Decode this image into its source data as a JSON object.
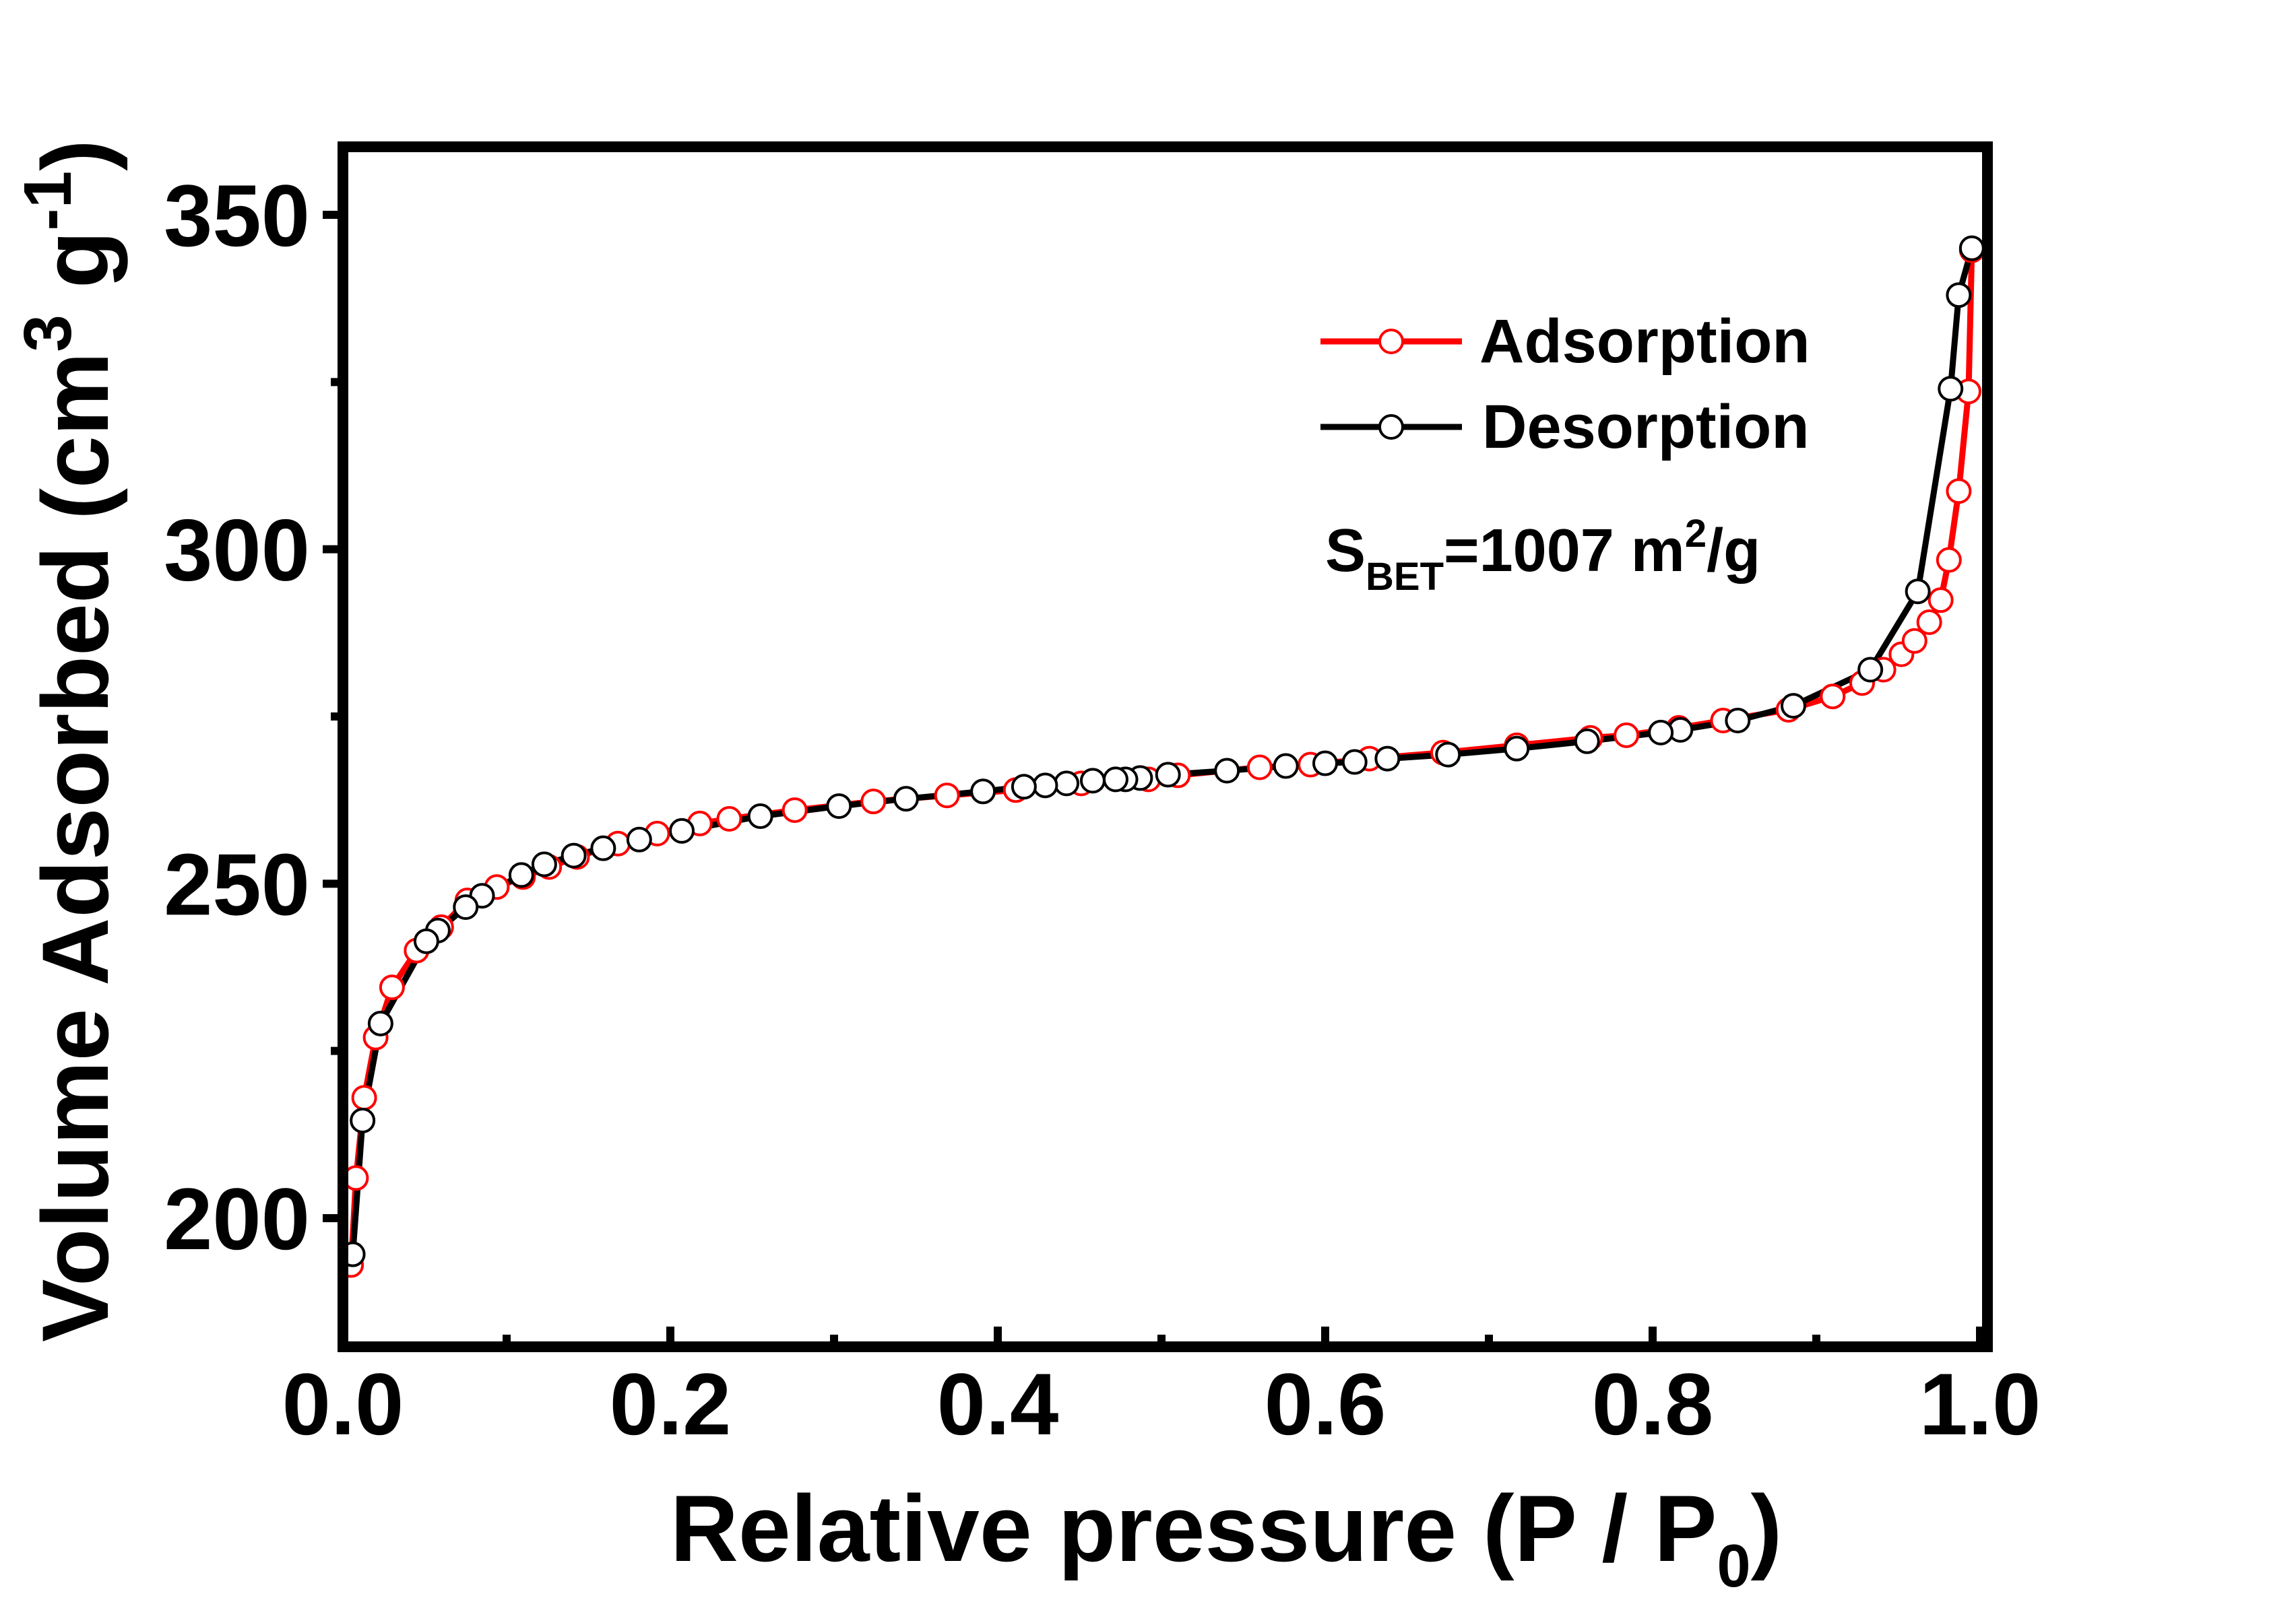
{
  "chart_data": {
    "type": "scatter",
    "title": "",
    "xlabel": {
      "main": "Relative pressure (P / P",
      "sub": "0",
      "end": ")"
    },
    "ylabel": {
      "main": "Volume Adsorbed (cm",
      "sup1": "3",
      "mid": " g",
      "sup2": "-1",
      "end": ")"
    },
    "xlim": [
      0,
      1.0
    ],
    "ylim": [
      181,
      360
    ],
    "x_ticks": [
      "0.0",
      "0.2",
      "0.4",
      "0.6",
      "0.8",
      "1.0"
    ],
    "y_ticks": [
      "200",
      "250",
      "300",
      "350"
    ],
    "grid": false,
    "legend_position": "top-right",
    "annotation": {
      "main": "S",
      "sub": "BET",
      "rest": "=1007 m",
      "sup": "2",
      "end": "/g"
    },
    "series": [
      {
        "name": "Adsorption",
        "color": "#ff0000",
        "marker": "open-circle",
        "x": [
          0.005,
          0.008,
          0.013,
          0.02,
          0.03,
          0.045,
          0.06,
          0.076,
          0.094,
          0.11,
          0.126,
          0.143,
          0.168,
          0.192,
          0.218,
          0.236,
          0.276,
          0.324,
          0.369,
          0.411,
          0.451,
          0.492,
          0.51,
          0.56,
          0.591,
          0.627,
          0.672,
          0.717,
          0.762,
          0.784,
          0.816,
          0.843,
          0.883,
          0.91,
          0.928,
          0.941,
          0.952,
          0.96,
          0.969,
          0.976,
          0.981,
          0.987,
          0.993,
          0.995
        ],
        "y": [
          193,
          206,
          218,
          227,
          234.5,
          240,
          243.5,
          247.5,
          249.5,
          251,
          252.5,
          254,
          256,
          257.5,
          259,
          259.7,
          261,
          262.3,
          263.2,
          264,
          265,
          265.6,
          266.2,
          267.4,
          267.8,
          268.7,
          269.6,
          270.7,
          271.8,
          272.2,
          273.3,
          274.4,
          276,
          278,
          280,
          282,
          284.3,
          286.3,
          289.1,
          292.4,
          298.4,
          308.7,
          323.6,
          344.7
        ]
      },
      {
        "name": "Desorption",
        "color": "#000000",
        "marker": "white-filled-circle",
        "x": [
          0.995,
          0.987,
          0.982,
          0.962,
          0.933,
          0.886,
          0.852,
          0.817,
          0.805,
          0.76,
          0.717,
          0.675,
          0.638,
          0.618,
          0.6,
          0.576,
          0.54,
          0.504,
          0.487,
          0.478,
          0.472,
          0.458,
          0.442,
          0.429,
          0.416,
          0.391,
          0.344,
          0.303,
          0.255,
          0.207,
          0.181,
          0.159,
          0.141,
          0.123,
          0.109,
          0.085,
          0.075,
          0.058,
          0.051,
          0.023,
          0.012,
          0.006
        ],
        "y": [
          345,
          338,
          324,
          293.7,
          282,
          276.6,
          274.4,
          273,
          272.6,
          271.3,
          270.2,
          269.3,
          268.7,
          268.2,
          268,
          267.6,
          266.9,
          266.3,
          265.8,
          265.6,
          265.6,
          265.4,
          265,
          264.7,
          264.5,
          263.8,
          262.7,
          261.6,
          260.1,
          257.9,
          256.6,
          255.3,
          254.2,
          252.9,
          251.3,
          248.2,
          246.5,
          243,
          241.4,
          229.1,
          214.6,
          194.6
        ]
      }
    ]
  }
}
